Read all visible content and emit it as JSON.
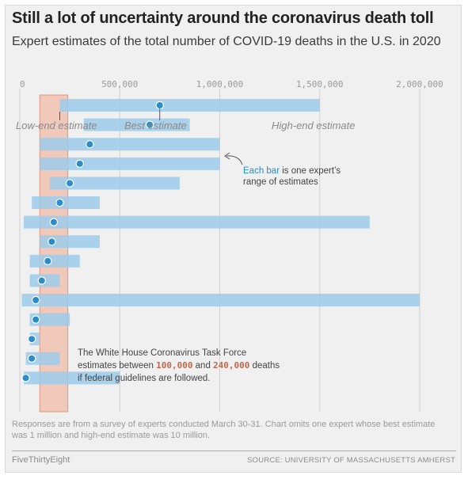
{
  "title": "Still a lot of uncertainty around the coronavirus death toll",
  "subtitle": "Expert estimates of the total number of COVID-19 deaths in the U.S. in 2020",
  "colors": {
    "background": "#f0f0f0",
    "bar": "#9ccbea",
    "dot": "#2a8cc8",
    "white_house_band": "#f0c9bb",
    "white_house_border": "#e0977d",
    "grid": "#d0d0d0"
  },
  "chart_data": {
    "type": "range_dot",
    "x_tick_labels": [
      "0",
      "500,000",
      "1,000,000",
      "1,500,000",
      "2,000,000"
    ],
    "x_ticks": [
      0,
      500000,
      1000000,
      1500000,
      2000000
    ],
    "xlim": [
      0,
      2150000
    ],
    "grid": true,
    "experts": [
      {
        "low": 200000,
        "best": 700000,
        "high": 1500000
      },
      {
        "low": 320000,
        "best": 650000,
        "high": 850000
      },
      {
        "low": 100000,
        "best": 350000,
        "high": 1000000
      },
      {
        "low": 100000,
        "best": 300000,
        "high": 1000000
      },
      {
        "low": 150000,
        "best": 250000,
        "high": 800000
      },
      {
        "low": 60000,
        "best": 200000,
        "high": 400000
      },
      {
        "low": 20000,
        "best": 170000,
        "high": 1750000
      },
      {
        "low": 100000,
        "best": 160000,
        "high": 400000
      },
      {
        "low": 50000,
        "best": 140000,
        "high": 300000
      },
      {
        "low": 50000,
        "best": 110000,
        "high": 200000
      },
      {
        "low": 10000,
        "best": 80000,
        "high": 2000000
      },
      {
        "low": 50000,
        "best": 80000,
        "high": 250000
      },
      {
        "low": 50000,
        "best": 60000,
        "high": 100000
      },
      {
        "low": 30000,
        "best": 60000,
        "high": 200000
      },
      {
        "low": 20000,
        "best": 30000,
        "high": 500000
      }
    ],
    "reference_band": {
      "low": 100000,
      "high": 240000
    },
    "annotations": {
      "low_end": "Low-end estimate",
      "best": "Best estimate",
      "high_end": "High-end estimate",
      "bar_note_highlight": "Each bar",
      "bar_note_line1_rest": " is one expert’s",
      "bar_note_line2": "range of estimates",
      "wh_line1": "The White House Coronavirus Task Force",
      "wh_line2_prefix": "estimates between ",
      "wh_low": "100,000",
      "wh_and": " and ",
      "wh_high": "240,000",
      "wh_line2_suffix": " deaths",
      "wh_line3": "if federal guidelines are followed."
    }
  },
  "footnote": "Responses are from a survey of experts conducted March 30-31. Chart omits one expert whose best estimate was 1 million and high-end estimate was 10 million.",
  "brand": "FiveThirtyEight",
  "source": "SOURCE: UNIVERSITY OF MASSACHUSETTS AMHERST"
}
